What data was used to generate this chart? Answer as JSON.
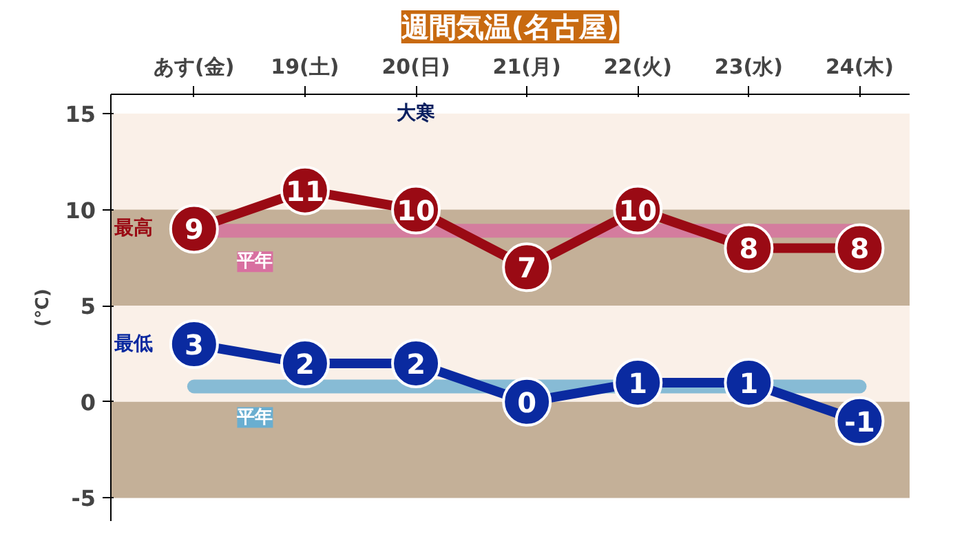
{
  "chart_data": {
    "type": "line",
    "title": "週間気温(名古屋)",
    "ylabel": "(℃)",
    "categories": [
      "あす(金)",
      "19(土)",
      "20(日)",
      "21(月)",
      "22(火)",
      "23(水)",
      "24(木)"
    ],
    "series": [
      {
        "name": "平年",
        "color": "#d86fa0",
        "values": [
          8.9,
          8.9,
          8.9,
          8.9,
          8.9,
          8.9,
          8.9
        ],
        "marker": "none",
        "data_labels": false
      },
      {
        "name": "平年",
        "color": "#6aaed0",
        "values": [
          0.8,
          0.8,
          0.8,
          0.8,
          0.8,
          0.8,
          0.8
        ],
        "marker": "none",
        "data_labels": false
      },
      {
        "name": "最高",
        "color": "#9a0a14",
        "values": [
          9,
          11,
          10,
          7,
          10,
          8,
          8
        ]
      },
      {
        "name": "最低",
        "color": "#0a2aa0",
        "values": [
          3,
          2,
          2,
          0,
          1,
          1,
          -1
        ]
      }
    ],
    "ylim": [
      -6.2,
      16
    ],
    "yticks": [
      -5,
      0,
      5,
      10,
      15
    ],
    "bands": [
      {
        "axis": "y",
        "from": 10,
        "to": 15,
        "color": "#faf0e8"
      },
      {
        "axis": "y",
        "from": 5,
        "to": 10,
        "color": "#c4b098"
      },
      {
        "axis": "y",
        "from": 0,
        "to": 5,
        "color": "#faf0e8"
      },
      {
        "axis": "y",
        "from": -5,
        "to": 0,
        "color": "#c4b098"
      }
    ],
    "annotations": [
      "大寒"
    ],
    "marker": "circle",
    "data_labels": true,
    "grid": false
  }
}
